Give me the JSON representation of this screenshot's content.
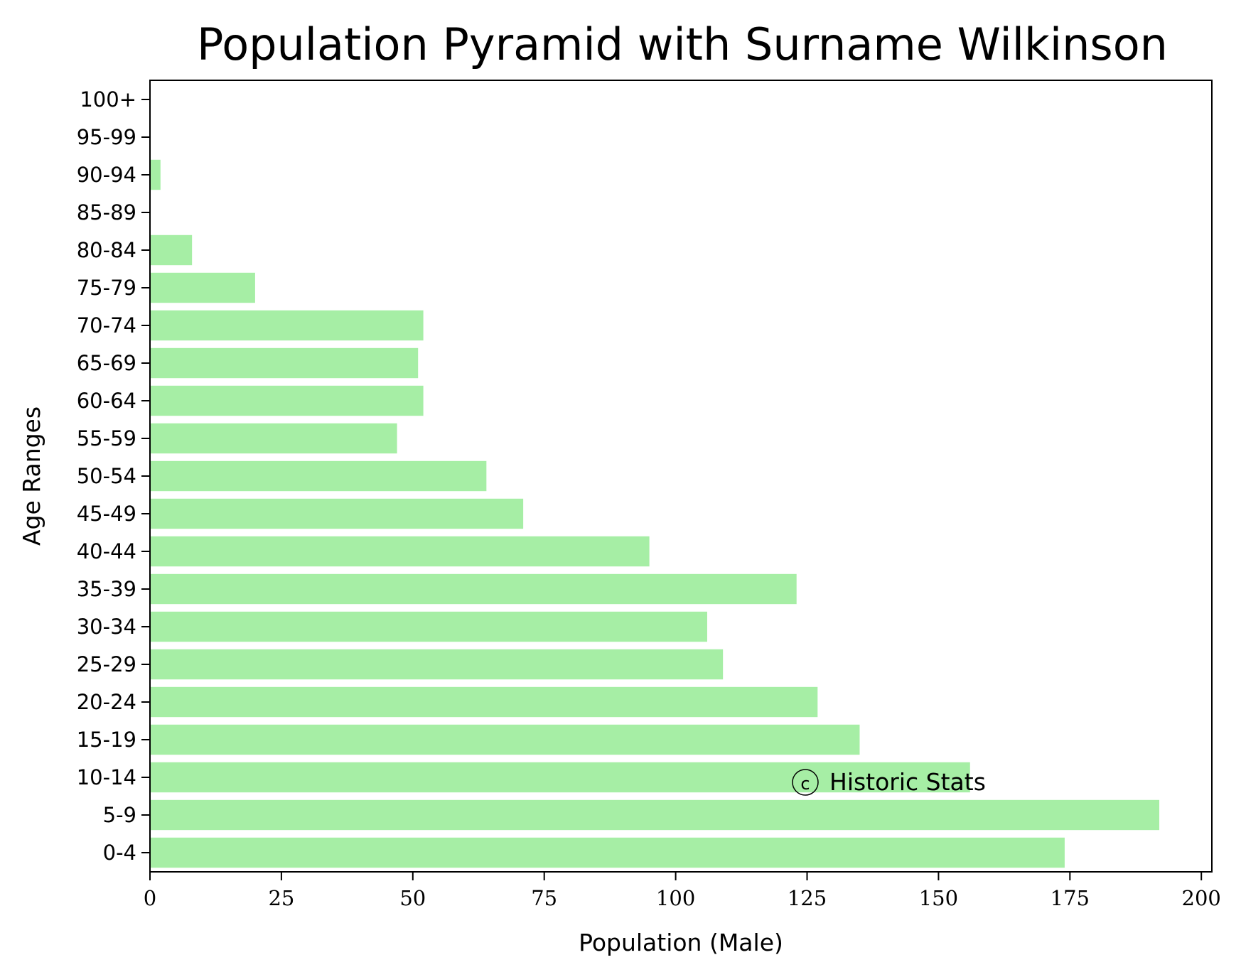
{
  "chart_data": {
    "type": "bar",
    "orientation": "horizontal",
    "title": "Population Pyramid with Surname Wilkinson",
    "xlabel": "Population (Male)",
    "ylabel": "Age Ranges",
    "categories": [
      "0-4",
      "5-9",
      "10-14",
      "15-19",
      "20-24",
      "25-29",
      "30-34",
      "35-39",
      "40-44",
      "45-49",
      "50-54",
      "55-59",
      "60-64",
      "65-69",
      "70-74",
      "75-79",
      "80-84",
      "85-89",
      "90-94",
      "95-99",
      "100+"
    ],
    "values": [
      174,
      192,
      156,
      135,
      127,
      109,
      106,
      123,
      95,
      71,
      64,
      47,
      52,
      51,
      52,
      20,
      8,
      0,
      2,
      0,
      0
    ],
    "xlim": [
      0,
      202
    ],
    "xticks": [
      0,
      25,
      50,
      75,
      100,
      125,
      150,
      175,
      200
    ],
    "bar_color": "#a6eea5",
    "grid": false,
    "annotation": "Historic Stats",
    "annotation_position": "lower-right"
  }
}
